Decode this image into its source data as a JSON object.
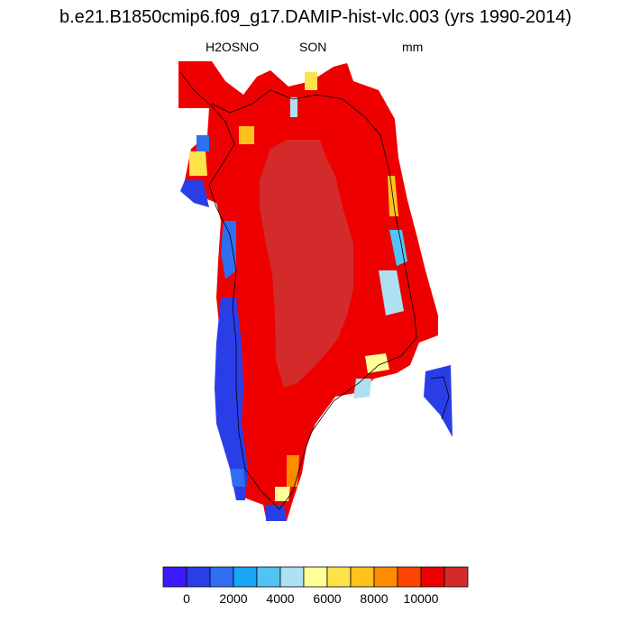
{
  "title": "b.e21.B1850cmip6.f09_g17.DAMIP-hist-vlc.003 (yrs 1990-2014)",
  "variable": "H2OSNO",
  "season": "SON",
  "units": "mm",
  "colorbar": {
    "colors": [
      "#3a1bff",
      "#2a3ee8",
      "#2f6ef0",
      "#18a6f5",
      "#4fc4f5",
      "#aee0f3",
      "#ffff9a",
      "#ffe24a",
      "#ffc21a",
      "#ff8c00",
      "#ff4500",
      "#ee0000",
      "#d32b2b"
    ],
    "labels": [
      "0",
      "2000",
      "4000",
      "6000",
      "8000",
      "10000"
    ]
  }
}
